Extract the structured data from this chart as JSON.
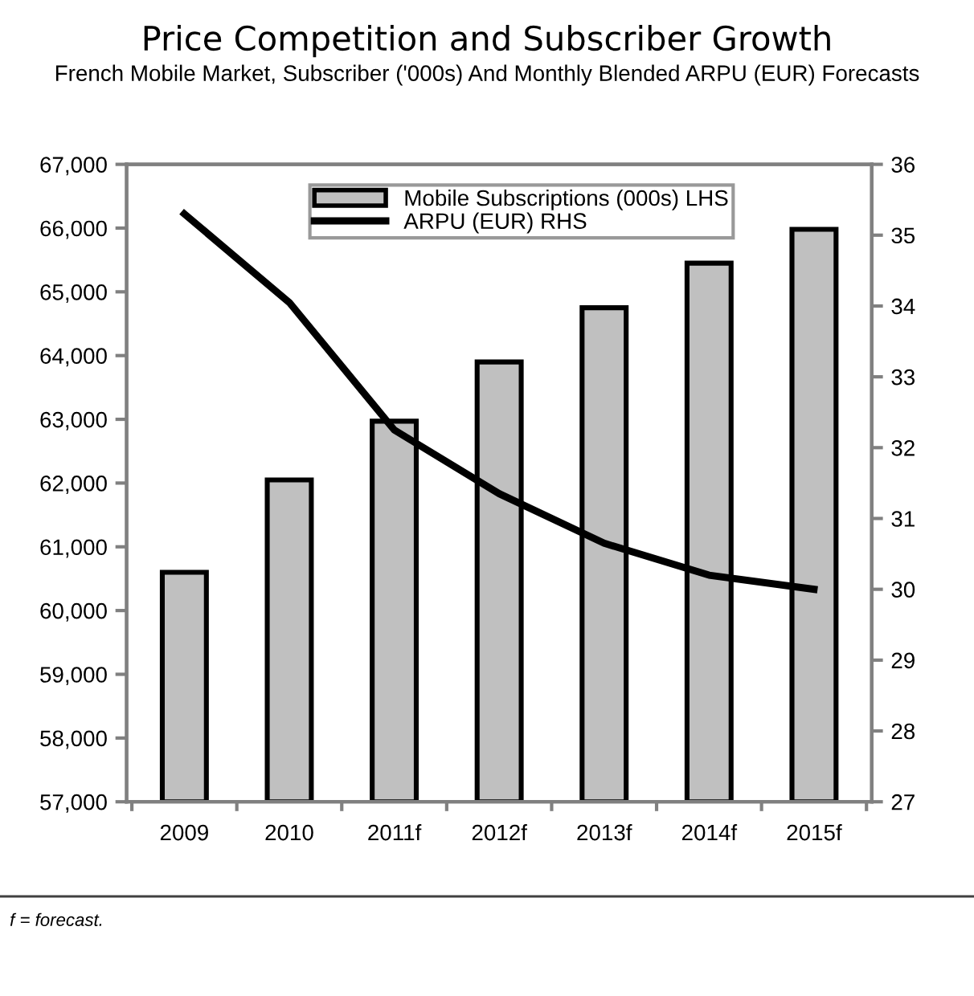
{
  "chart_data": {
    "type": "bar",
    "title": "Price Competition and Subscriber Growth",
    "subtitle": "French Mobile Market, Subscriber ('000s) And Monthly Blended ARPU (EUR) Forecasts",
    "categories": [
      "2009",
      "2010",
      "2011f",
      "2012f",
      "2013f",
      "2014f",
      "2015f"
    ],
    "series": [
      {
        "name": "Mobile Subscriptions (000s) LHS",
        "color": "#c0c0c0",
        "values": [
          60600,
          62050,
          62970,
          63900,
          64750,
          65450,
          65980
        ]
      },
      {
        "name": "ARPU (EUR) RHS",
        "type": "line",
        "axis": "y2",
        "color": "#000000",
        "values": [
          35.3,
          34.05,
          32.25,
          31.35,
          30.65,
          30.2,
          30.0
        ]
      }
    ],
    "ylim": [
      57000,
      67000
    ],
    "yticks": [
      {
        "value": 57000,
        "label": "57,000"
      },
      {
        "value": 58000,
        "label": "58,000"
      },
      {
        "value": 59000,
        "label": "59,000"
      },
      {
        "value": 60000,
        "label": "60,000"
      },
      {
        "value": 61000,
        "label": "61,000"
      },
      {
        "value": 62000,
        "label": "62,000"
      },
      {
        "value": 63000,
        "label": "63,000"
      },
      {
        "value": 64000,
        "label": "64,000"
      },
      {
        "value": 65000,
        "label": "65,000"
      },
      {
        "value": 66000,
        "label": "66,000"
      },
      {
        "value": 67000,
        "label": "67,000"
      }
    ],
    "y2lim": [
      27,
      36
    ],
    "y2ticks": [
      27,
      28,
      29,
      30,
      31,
      32,
      33,
      34,
      35,
      36
    ],
    "grid": false,
    "legend": "top",
    "marker": "none",
    "line_style": "solid",
    "annotations": [
      "f = forecast."
    ]
  }
}
